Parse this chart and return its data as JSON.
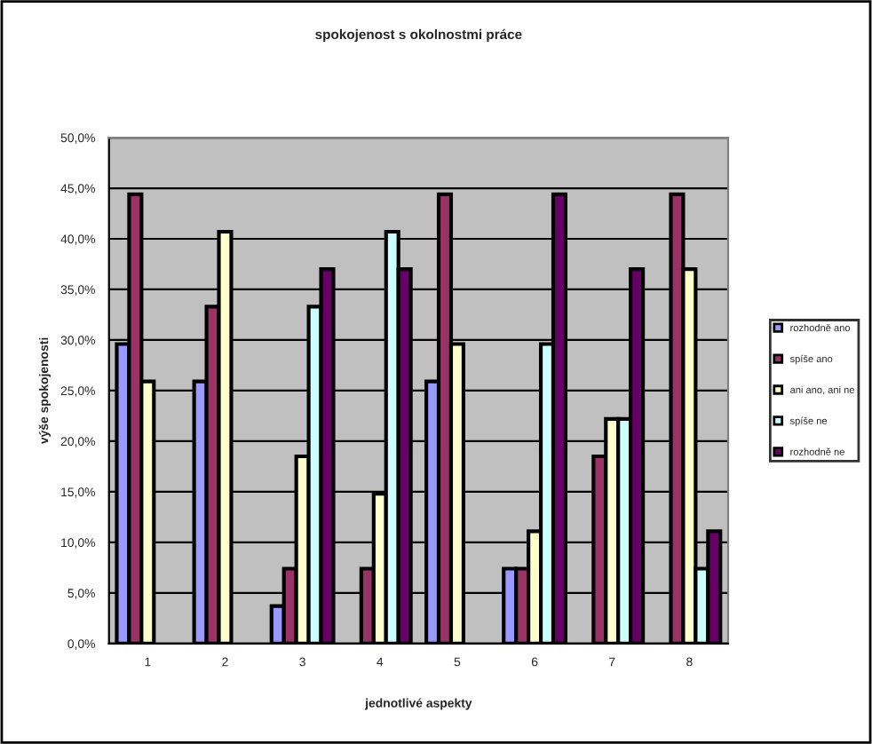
{
  "chart_data": {
    "type": "bar",
    "title": "spokojenost s okolnostmi práce",
    "xlabel": "jednotlivé aspekty",
    "ylabel": "výše spokojenosti",
    "categories": [
      "1",
      "2",
      "3",
      "4",
      "5",
      "6",
      "7",
      "8"
    ],
    "series": [
      {
        "name": "rozhodně ano",
        "color": "#9999ff",
        "values": [
          29.6,
          25.9,
          3.7,
          null,
          25.9,
          7.4,
          null,
          null
        ]
      },
      {
        "name": "spíše ano",
        "color": "#993366",
        "values": [
          44.4,
          33.3,
          7.4,
          7.4,
          44.4,
          7.4,
          18.5,
          44.4
        ]
      },
      {
        "name": "ani ano, ani ne",
        "color": "#ffffcc",
        "values": [
          25.9,
          40.7,
          18.5,
          14.8,
          29.6,
          11.1,
          22.2,
          37.0
        ]
      },
      {
        "name": "spíše ne",
        "color": "#ccffff",
        "values": [
          null,
          null,
          33.3,
          40.7,
          null,
          29.6,
          22.2,
          7.4
        ]
      },
      {
        "name": "rozhodně ne",
        "color": "#660066",
        "values": [
          null,
          null,
          37.0,
          37.0,
          null,
          44.4,
          37.0,
          11.1
        ]
      }
    ],
    "ylim": [
      0,
      50
    ],
    "yticks": [
      {
        "value": 0,
        "label": "0,0%"
      },
      {
        "value": 5,
        "label": "5,0%"
      },
      {
        "value": 10,
        "label": "10,0%"
      },
      {
        "value": 15,
        "label": "15,0%"
      },
      {
        "value": 20,
        "label": "20,0%"
      },
      {
        "value": 25,
        "label": "25,0%"
      },
      {
        "value": 30,
        "label": "30,0%"
      },
      {
        "value": 35,
        "label": "35,0%"
      },
      {
        "value": 40,
        "label": "40,0%"
      },
      {
        "value": 45,
        "label": "45,0%"
      },
      {
        "value": 50,
        "label": "50,0%"
      }
    ],
    "grid": "y",
    "legend": "right"
  }
}
